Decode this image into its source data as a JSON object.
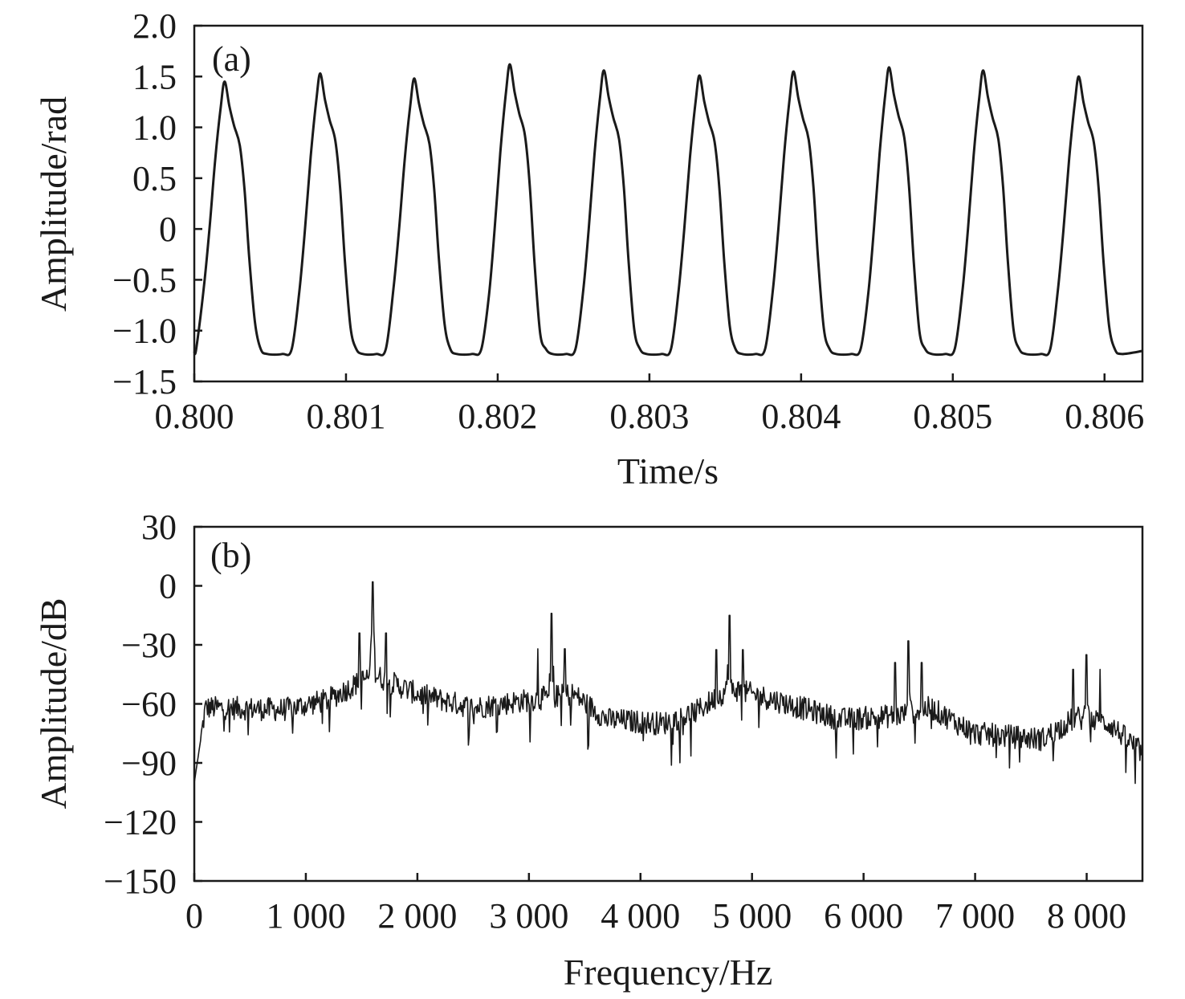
{
  "chart_data": [
    {
      "type": "line",
      "panel_label": "(a)",
      "xlabel": "Time/s",
      "ylabel": "Amplitude/rad",
      "xlim": [
        0.8,
        0.80625
      ],
      "ylim": [
        -1.5,
        2.0
      ],
      "x_ticks": [
        "0.800",
        "0.801",
        "0.802",
        "0.803",
        "0.804",
        "0.805",
        "0.806"
      ],
      "x_tick_values": [
        0.8,
        0.801,
        0.802,
        0.803,
        0.804,
        0.805,
        0.806
      ],
      "y_ticks": [
        "2.0",
        "1.5",
        "1.0",
        "0.5",
        "0",
        "−0.5",
        "−1.0",
        "−1.5"
      ],
      "y_tick_values": [
        2.0,
        1.5,
        1.0,
        0.5,
        0,
        -0.5,
        -1.0,
        -1.5
      ],
      "signal": {
        "period_s": 0.000625,
        "peak_times": [
          0.8002,
          0.80083,
          0.80145,
          0.80208,
          0.8027,
          0.80333,
          0.80395,
          0.80458,
          0.8052,
          0.80583
        ],
        "peak_values": [
          1.45,
          1.53,
          1.48,
          1.62,
          1.56,
          1.51,
          1.55,
          1.59,
          1.56,
          1.5
        ],
        "trough_value": -1.23,
        "start_value": -1.2,
        "end_value": -1.2
      }
    },
    {
      "type": "line",
      "panel_label": "(b)",
      "xlabel": "Frequency/Hz",
      "ylabel": "Amplitude/dB",
      "xlim": [
        0,
        8500
      ],
      "ylim": [
        -150,
        30
      ],
      "x_ticks": [
        "0",
        "1 000",
        "2 000",
        "3 000",
        "4 000",
        "5 000",
        "6 000",
        "7 000",
        "8 000"
      ],
      "x_tick_values": [
        0,
        1000,
        2000,
        3000,
        4000,
        5000,
        6000,
        7000,
        8000
      ],
      "y_ticks": [
        "30",
        "0",
        "−30",
        "−60",
        "−90",
        "−120",
        "−150"
      ],
      "y_tick_values": [
        30,
        0,
        -30,
        -60,
        -90,
        -120,
        -150
      ],
      "spectrum": {
        "start_value": -100,
        "envelope_points": [
          [
            0,
            -100
          ],
          [
            100,
            -62
          ],
          [
            300,
            -62
          ],
          [
            800,
            -63
          ],
          [
            1200,
            -58
          ],
          [
            1600,
            -45
          ],
          [
            2000,
            -55
          ],
          [
            2500,
            -62
          ],
          [
            3000,
            -58
          ],
          [
            3400,
            -55
          ],
          [
            3700,
            -68
          ],
          [
            4200,
            -70
          ],
          [
            4500,
            -64
          ],
          [
            4800,
            -52
          ],
          [
            5200,
            -58
          ],
          [
            5800,
            -68
          ],
          [
            6300,
            -66
          ],
          [
            6600,
            -62
          ],
          [
            7000,
            -75
          ],
          [
            7600,
            -78
          ],
          [
            7900,
            -67
          ],
          [
            8200,
            -70
          ],
          [
            8500,
            -85
          ]
        ],
        "peaks": [
          {
            "freq": 1600,
            "value": 2
          },
          {
            "freq": 3200,
            "value": -14
          },
          {
            "freq": 4800,
            "value": -15
          },
          {
            "freq": 6400,
            "value": -28
          },
          {
            "freq": 8000,
            "value": -35
          }
        ]
      }
    }
  ]
}
